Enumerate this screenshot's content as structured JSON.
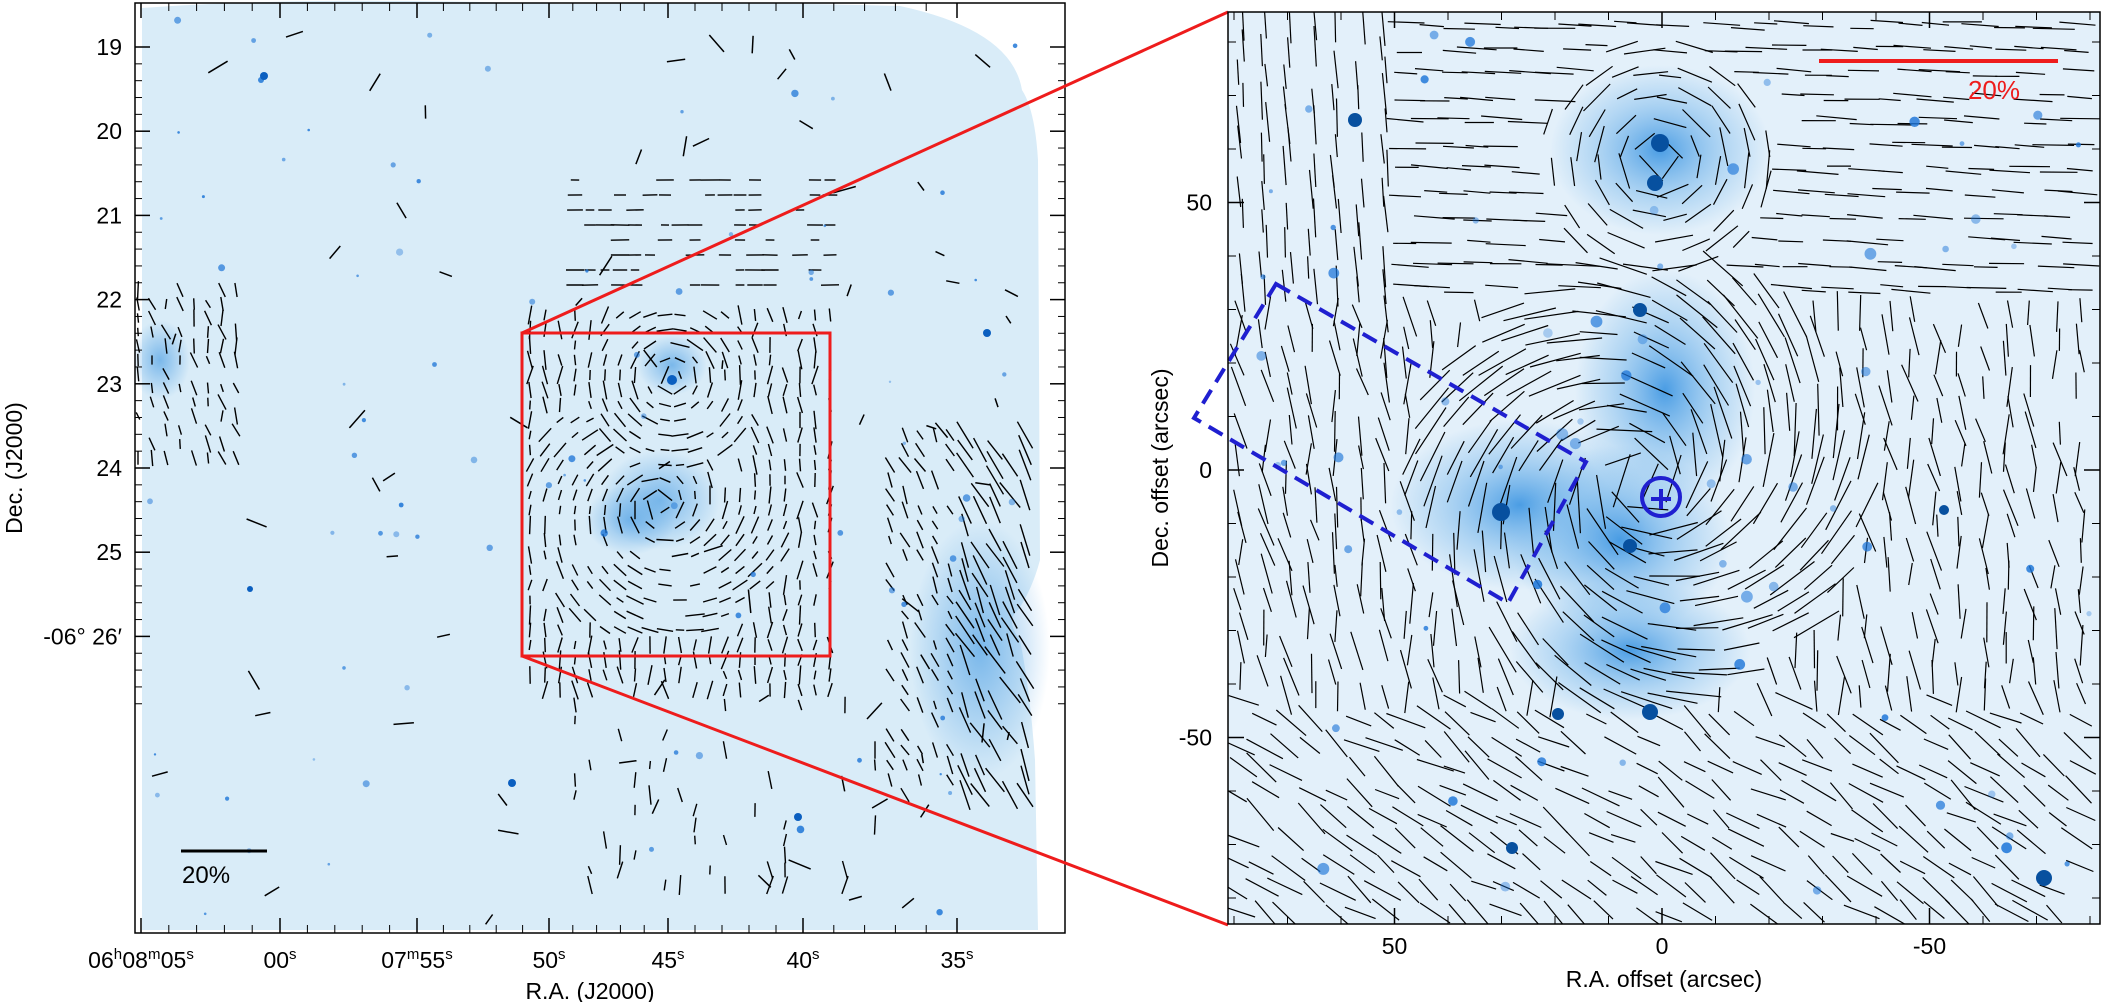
{
  "left_panel": {
    "x_tick_labels": [
      {
        "ra": "06h08m05s",
        "parts": [
          [
            "06",
            ""
          ],
          [
            "h",
            "sup"
          ],
          [
            " 08",
            ""
          ],
          [
            "m",
            "sup"
          ],
          [
            " 05",
            ""
          ],
          [
            "s",
            "sup"
          ]
        ]
      },
      {
        "ra": "00s",
        "parts": [
          [
            "00",
            ""
          ],
          [
            "s",
            "sup"
          ]
        ]
      },
      {
        "ra": "07m55s",
        "parts": [
          [
            "07",
            ""
          ],
          [
            "m",
            "sup"
          ],
          [
            " 55",
            ""
          ],
          [
            "s",
            "sup"
          ]
        ]
      },
      {
        "ra": "50s",
        "parts": [
          [
            "50",
            ""
          ],
          [
            "s",
            "sup"
          ]
        ]
      },
      {
        "ra": "45s",
        "parts": [
          [
            "45",
            ""
          ],
          [
            "s",
            "sup"
          ]
        ]
      },
      {
        "ra": "40s",
        "parts": [
          [
            "40",
            ""
          ],
          [
            "s",
            "sup"
          ]
        ]
      },
      {
        "ra": "35s",
        "parts": [
          [
            "35",
            ""
          ],
          [
            "s",
            "sup"
          ]
        ]
      }
    ],
    "y_tick_labels": [
      "19",
      "20",
      "21",
      "22",
      "23",
      "24",
      "25",
      "-06° 26′"
    ],
    "xlabel": "R.A. (J2000)",
    "ylabel": "Dec. (J2000)",
    "scale_bar_label": "20%",
    "colors": {
      "map": "#d9ecf8",
      "frame": "#000000",
      "vector": "#000000",
      "zoom_box": "#ee1c1c",
      "source": "#1a73d6"
    }
  },
  "right_panel": {
    "x_ticks": [
      50,
      0,
      -50
    ],
    "y_ticks": [
      50,
      0,
      -50
    ],
    "xlabel": "R.A. offset (arcsec)",
    "ylabel": "Dec. offset (arcsec)",
    "scale_bar_label": "20%",
    "colors": {
      "map": "#e3f0fa",
      "vector": "#000000",
      "scale_bar": "#ee1c1c",
      "dashed_box": "#1f1fd0",
      "marker": "#1f1fd0"
    }
  }
}
